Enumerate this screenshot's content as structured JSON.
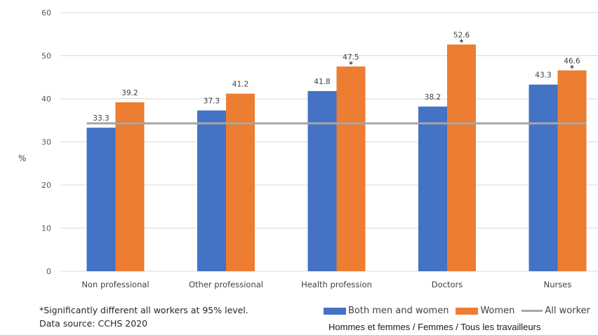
{
  "colors": {
    "both": "#4472C4",
    "women": "#ED7D31",
    "all_workers": "#A6A6A6",
    "grid": "#D9D9D9"
  },
  "chart_data": {
    "type": "bar",
    "categories": [
      "Non professional",
      "Other professional",
      "Health profession",
      "Doctors",
      "Nurses"
    ],
    "series": [
      {
        "name": "Both men and women",
        "values": [
          33.3,
          37.3,
          41.8,
          38.2,
          43.3
        ],
        "significant": [
          false,
          false,
          false,
          false,
          false
        ]
      },
      {
        "name": "Women",
        "values": [
          39.2,
          41.2,
          47.5,
          52.6,
          46.6
        ],
        "significant": [
          false,
          false,
          true,
          true,
          true
        ]
      }
    ],
    "reference_line": {
      "name": "All worker",
      "value": 34.3
    },
    "ylabel": "%",
    "ylim": [
      0,
      60
    ],
    "yticks": [
      0,
      10,
      20,
      30,
      40,
      50,
      60
    ],
    "significance_marker": "*",
    "grid": true,
    "legend_position": "bottom"
  },
  "notes": {
    "significance": "*Significantly different all workers at 95% level.",
    "source": "Data source: CCHS 2020"
  },
  "legend": {
    "both": "Both men and women",
    "women": "Women",
    "all": "All worker"
  },
  "subtitle": "Hommes et femmes / Femmes / Tous les travailleurs"
}
